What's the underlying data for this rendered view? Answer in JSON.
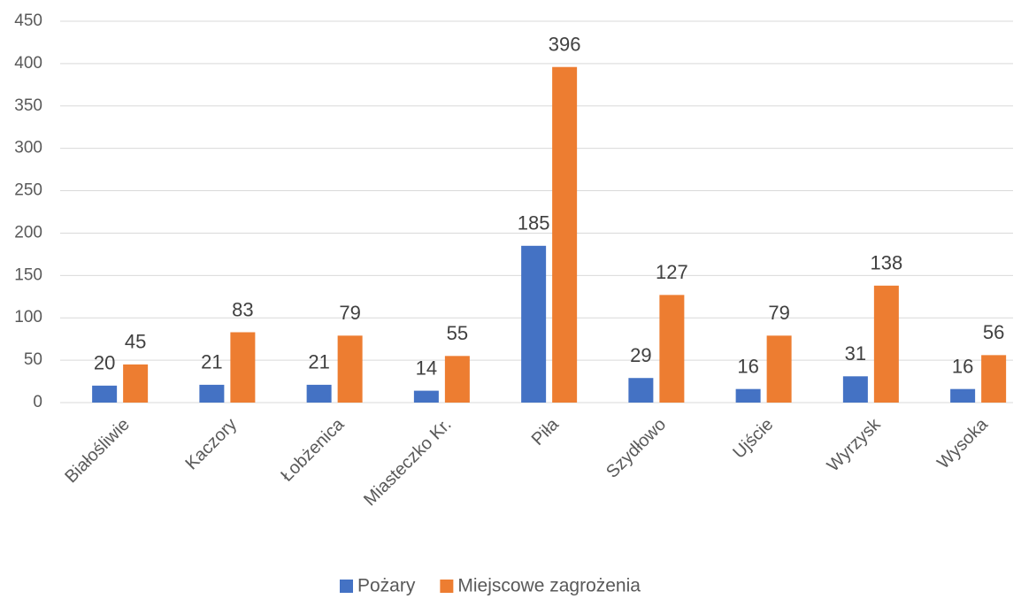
{
  "chart_data": {
    "type": "bar",
    "categories": [
      "Białośliwie",
      "Kaczory",
      "Łobżenica",
      "Miasteczko Kr.",
      "Piła",
      "Szydłowo",
      "Ujście",
      "Wyrzysk",
      "Wysoka"
    ],
    "series": [
      {
        "name": "Pożary",
        "color": "#4472c4",
        "values": [
          20,
          21,
          21,
          14,
          185,
          29,
          16,
          31,
          16
        ]
      },
      {
        "name": "Miejscowe zagrożenia",
        "color": "#ed7d31",
        "values": [
          45,
          83,
          79,
          55,
          396,
          127,
          79,
          138,
          56
        ]
      }
    ],
    "ylim": [
      0,
      450
    ],
    "yticks": [
      0,
      50,
      100,
      150,
      200,
      250,
      300,
      350,
      400,
      450
    ],
    "grid": true,
    "legend": "bottom"
  }
}
